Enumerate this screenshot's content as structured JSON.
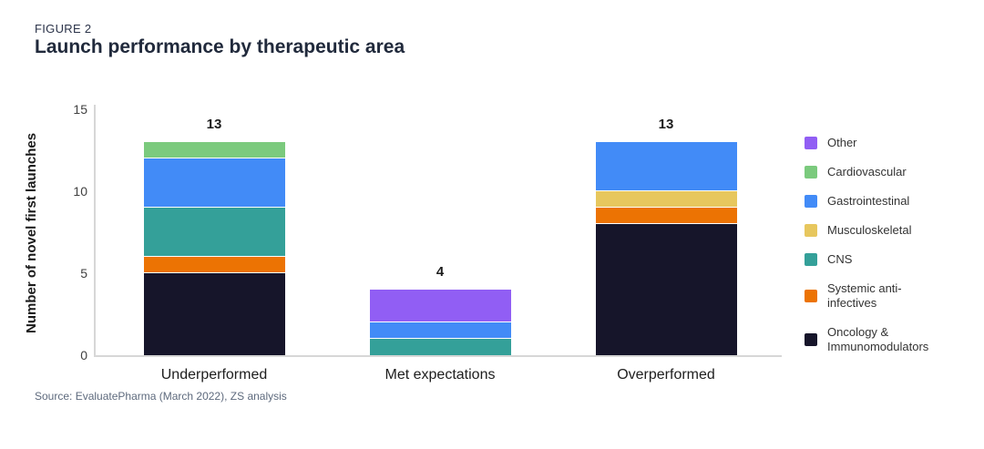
{
  "figure_label": "FIGURE 2",
  "title": "Launch performance by therapeutic area",
  "source": "Source: EvaluatePharma (March 2022), ZS analysis",
  "chart_data": {
    "type": "bar",
    "stacked": true,
    "title": "Launch performance by therapeutic area",
    "xlabel": "",
    "ylabel": "Number of novel first launches",
    "ylim": [
      0,
      15
    ],
    "yticks": [
      0,
      5,
      10,
      15
    ],
    "grid": false,
    "legend_position": "right",
    "categories": [
      "Underperformed",
      "Met expectations",
      "Overperformed"
    ],
    "totals": [
      13,
      4,
      13
    ],
    "series": [
      {
        "name": "Oncology & Immunomodulators",
        "color": "#16152a",
        "values": [
          5,
          0,
          8
        ]
      },
      {
        "name": "Systemic anti-infectives",
        "color": "#ec7303",
        "values": [
          1,
          0,
          1
        ]
      },
      {
        "name": "CNS",
        "color": "#34a099",
        "values": [
          3,
          1,
          0
        ]
      },
      {
        "name": "Musculoskeletal",
        "color": "#e7c75e",
        "values": [
          0,
          0,
          1
        ]
      },
      {
        "name": "Gastrointestinal",
        "color": "#428bf7",
        "values": [
          3,
          1,
          3
        ]
      },
      {
        "name": "Cardiovascular",
        "color": "#7bca7d",
        "values": [
          1,
          0,
          0
        ]
      },
      {
        "name": "Other",
        "color": "#915ef4",
        "values": [
          0,
          2,
          0
        ]
      }
    ],
    "legend_order": [
      "Other",
      "Cardiovascular",
      "Gastrointestinal",
      "Musculoskeletal",
      "CNS",
      "Systemic anti-infectives",
      "Oncology & Immunomodulators"
    ]
  }
}
